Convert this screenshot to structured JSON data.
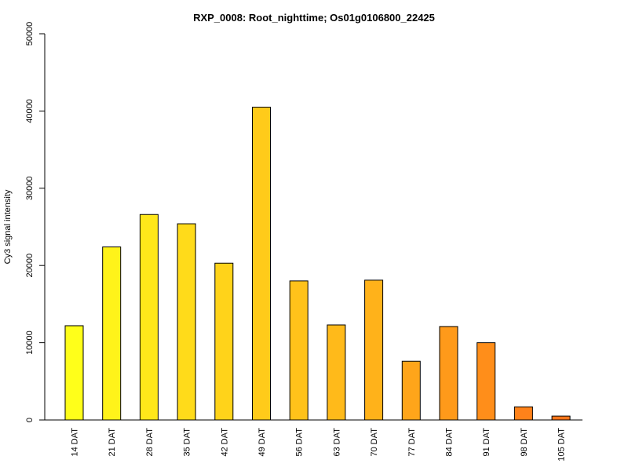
{
  "chart_data": {
    "type": "bar",
    "title": "RXP_0008: Root_nighttime; Os01g0106800_22425",
    "xlabel": "",
    "ylabel": "Cy3 signal intensity",
    "ylim": [
      0,
      50000
    ],
    "yticks": [
      0,
      10000,
      20000,
      30000,
      40000,
      50000
    ],
    "categories": [
      "14 DAT",
      "21 DAT",
      "28 DAT",
      "35 DAT",
      "42 DAT",
      "49 DAT",
      "56 DAT",
      "63 DAT",
      "70 DAT",
      "77 DAT",
      "84 DAT",
      "91 DAT",
      "98 DAT",
      "105 DAT"
    ],
    "values": [
      12200,
      22400,
      26600,
      25400,
      20300,
      40500,
      18000,
      12300,
      18100,
      7600,
      12100,
      10000,
      1700,
      500
    ],
    "colors": [
      "#ffff1a",
      "#fff31a",
      "#ffe71a",
      "#ffdb1a",
      "#ffd31a",
      "#ffcb1a",
      "#ffc21a",
      "#ffba1a",
      "#ffb21a",
      "#ffa51a",
      "#ff9a1a",
      "#ff8e1a",
      "#ff821a",
      "#ff761a"
    ],
    "grid": false,
    "legend": "none"
  }
}
